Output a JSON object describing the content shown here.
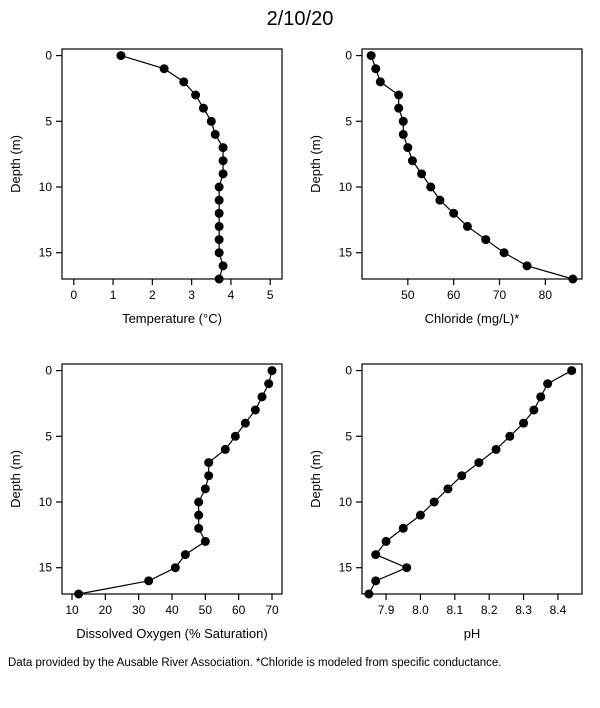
{
  "title": "2/10/20",
  "footnote": "Data provided by the Ausable River Association. *Chloride is modeled from specific conductance.",
  "y_shared": {
    "label": "Depth (m)",
    "lim": [
      17,
      -0.5
    ],
    "ticks": [
      0,
      5,
      10,
      15
    ],
    "label_fontsize": 13,
    "tick_fontsize": 12
  },
  "panels": {
    "temperature": {
      "type": "scatter-line",
      "xlabel": "Temperature (°C)",
      "xlim": [
        -0.3,
        5.3
      ],
      "xticks": [
        0,
        1,
        2,
        3,
        4,
        5
      ],
      "xtick_labels": [
        "0",
        "1",
        "2",
        "3",
        "4",
        "5"
      ],
      "label_fontsize": 13,
      "tick_fontsize": 12,
      "marker_color": "#000000",
      "line_color": "#000000",
      "marker_radius": 4.5,
      "line_width": 1.2,
      "box_color": "#000000",
      "background_color": "#ffffff",
      "data": [
        {
          "x": 1.2,
          "y": 0
        },
        {
          "x": 2.3,
          "y": 1
        },
        {
          "x": 2.8,
          "y": 2
        },
        {
          "x": 3.1,
          "y": 3
        },
        {
          "x": 3.3,
          "y": 4
        },
        {
          "x": 3.5,
          "y": 5
        },
        {
          "x": 3.6,
          "y": 6
        },
        {
          "x": 3.8,
          "y": 7
        },
        {
          "x": 3.8,
          "y": 8
        },
        {
          "x": 3.8,
          "y": 9
        },
        {
          "x": 3.7,
          "y": 10
        },
        {
          "x": 3.7,
          "y": 11
        },
        {
          "x": 3.7,
          "y": 12
        },
        {
          "x": 3.7,
          "y": 13
        },
        {
          "x": 3.7,
          "y": 14
        },
        {
          "x": 3.7,
          "y": 15
        },
        {
          "x": 3.8,
          "y": 16
        },
        {
          "x": 3.7,
          "y": 17
        }
      ]
    },
    "chloride": {
      "type": "scatter-line",
      "xlabel": "Chloride (mg/L)*",
      "xlim": [
        40,
        88
      ],
      "xticks": [
        50,
        60,
        70,
        80
      ],
      "xtick_labels": [
        "50",
        "60",
        "70",
        "80"
      ],
      "label_fontsize": 13,
      "tick_fontsize": 12,
      "marker_color": "#000000",
      "line_color": "#000000",
      "marker_radius": 4.5,
      "line_width": 1.2,
      "box_color": "#000000",
      "background_color": "#ffffff",
      "data": [
        {
          "x": 42,
          "y": 0
        },
        {
          "x": 43,
          "y": 1
        },
        {
          "x": 44,
          "y": 2
        },
        {
          "x": 48,
          "y": 3
        },
        {
          "x": 48,
          "y": 4
        },
        {
          "x": 49,
          "y": 5
        },
        {
          "x": 49,
          "y": 6
        },
        {
          "x": 50,
          "y": 7
        },
        {
          "x": 51,
          "y": 8
        },
        {
          "x": 53,
          "y": 9
        },
        {
          "x": 55,
          "y": 10
        },
        {
          "x": 57,
          "y": 11
        },
        {
          "x": 60,
          "y": 12
        },
        {
          "x": 63,
          "y": 13
        },
        {
          "x": 67,
          "y": 14
        },
        {
          "x": 71,
          "y": 15
        },
        {
          "x": 76,
          "y": 16
        },
        {
          "x": 86,
          "y": 17
        }
      ]
    },
    "dissolved_oxygen": {
      "type": "scatter-line",
      "xlabel": "Dissolved Oxygen (% Saturation)",
      "xlim": [
        7,
        73
      ],
      "xticks": [
        10,
        20,
        30,
        40,
        50,
        60,
        70
      ],
      "xtick_labels": [
        "10",
        "20",
        "30",
        "40",
        "50",
        "60",
        "70"
      ],
      "label_fontsize": 13,
      "tick_fontsize": 12,
      "marker_color": "#000000",
      "line_color": "#000000",
      "marker_radius": 4.5,
      "line_width": 1.2,
      "box_color": "#000000",
      "background_color": "#ffffff",
      "data": [
        {
          "x": 70,
          "y": 0
        },
        {
          "x": 69,
          "y": 1
        },
        {
          "x": 67,
          "y": 2
        },
        {
          "x": 65,
          "y": 3
        },
        {
          "x": 62,
          "y": 4
        },
        {
          "x": 59,
          "y": 5
        },
        {
          "x": 56,
          "y": 6
        },
        {
          "x": 51,
          "y": 7
        },
        {
          "x": 51,
          "y": 8
        },
        {
          "x": 50,
          "y": 9
        },
        {
          "x": 48,
          "y": 10
        },
        {
          "x": 48,
          "y": 11
        },
        {
          "x": 48,
          "y": 12
        },
        {
          "x": 50,
          "y": 13
        },
        {
          "x": 44,
          "y": 14
        },
        {
          "x": 41,
          "y": 15
        },
        {
          "x": 33,
          "y": 16
        },
        {
          "x": 12,
          "y": 17
        }
      ]
    },
    "ph": {
      "type": "scatter-line",
      "xlabel": "pH",
      "xlim": [
        7.83,
        8.47
      ],
      "xticks": [
        7.9,
        8.0,
        8.1,
        8.2,
        8.3,
        8.4
      ],
      "xtick_labels": [
        "7.9",
        "8.0",
        "8.1",
        "8.2",
        "8.3",
        "8.4"
      ],
      "label_fontsize": 13,
      "tick_fontsize": 12,
      "marker_color": "#000000",
      "line_color": "#000000",
      "marker_radius": 4.5,
      "line_width": 1.2,
      "box_color": "#000000",
      "background_color": "#ffffff",
      "data": [
        {
          "x": 8.44,
          "y": 0
        },
        {
          "x": 8.37,
          "y": 1
        },
        {
          "x": 8.35,
          "y": 2
        },
        {
          "x": 8.33,
          "y": 3
        },
        {
          "x": 8.3,
          "y": 4
        },
        {
          "x": 8.26,
          "y": 5
        },
        {
          "x": 8.22,
          "y": 6
        },
        {
          "x": 8.17,
          "y": 7
        },
        {
          "x": 8.12,
          "y": 8
        },
        {
          "x": 8.08,
          "y": 9
        },
        {
          "x": 8.04,
          "y": 10
        },
        {
          "x": 8.0,
          "y": 11
        },
        {
          "x": 7.95,
          "y": 12
        },
        {
          "x": 7.9,
          "y": 13
        },
        {
          "x": 7.87,
          "y": 14
        },
        {
          "x": 7.96,
          "y": 15
        },
        {
          "x": 7.87,
          "y": 16
        },
        {
          "x": 7.85,
          "y": 17
        }
      ]
    }
  }
}
